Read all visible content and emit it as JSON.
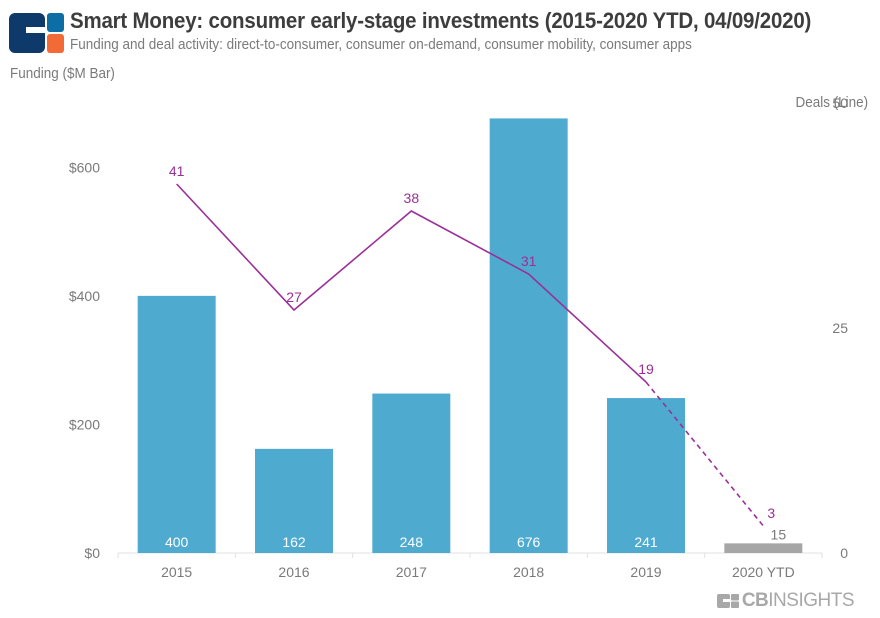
{
  "header": {
    "title": "Smart Money: consumer early-stage investments (2015-2020 YTD, 04/09/2020)",
    "subtitle": "Funding and deal activity: direct-to-consumer, consumer on-demand, consumer mobility, consumer apps",
    "logo_icon": "cb-insights-logo-icon"
  },
  "footer": {
    "brand_bold": "CB",
    "brand_light": "INSIGHTS",
    "logo_icon": "cb-insights-logo-icon"
  },
  "colors": {
    "bar": "#4eaacf",
    "bar_ytd": "#a6a6a6",
    "line": "#9b2f99",
    "axis_text": "#7a7a7a",
    "title": "#3d3d3d",
    "logo_navy": "#0e3a6b",
    "logo_blue": "#0d6da5",
    "logo_orange": "#f26a35"
  },
  "chart_data": {
    "type": "bar",
    "title": "Smart Money: consumer early-stage investments (2015-2020 YTD, 04/09/2020)",
    "subtitle": "Funding and deal activity: direct-to-consumer, consumer on-demand, consumer mobility, consumer apps",
    "categories": [
      "2015",
      "2016",
      "2017",
      "2018",
      "2019",
      "2020 YTD"
    ],
    "series": [
      {
        "name": "Funding ($M)",
        "type": "bar",
        "axis": "left",
        "values": [
          400,
          162,
          248,
          676,
          241,
          15
        ],
        "highlight_last": true
      },
      {
        "name": "Deals",
        "type": "line",
        "axis": "right",
        "values": [
          41,
          27,
          38,
          31,
          19,
          3
        ],
        "dashed_last_segment": true
      }
    ],
    "ylabel": "Funding ($M Bar)",
    "y2label": "Deals (Line)",
    "ylim": [
      0,
      700
    ],
    "yticks": [
      0,
      200,
      400,
      600
    ],
    "ytick_labels": [
      "$0",
      "$200",
      "$400",
      "$600"
    ],
    "y2lim": [
      0,
      50
    ],
    "y2ticks": [
      0,
      25,
      50
    ],
    "y2tick_labels": [
      "0",
      "25",
      "50"
    ],
    "grid": false,
    "legend": "none"
  }
}
